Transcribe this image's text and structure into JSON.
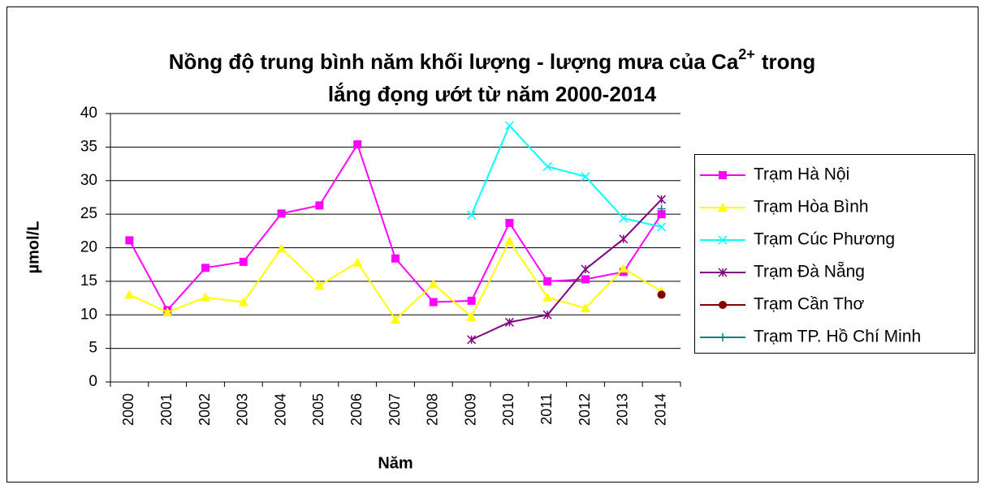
{
  "chart_data": {
    "type": "line",
    "title": {
      "line1": "Nồng độ trung bình năm khối lượng - lượng mưa của Ca",
      "superscript": "2+",
      "line1_end": "trong",
      "line2": "lắng đọng ướt  từ năm 2000-2014"
    },
    "x_label": "Năm",
    "y_label": "µmol/L",
    "categories": [
      "2000",
      "2001",
      "2002",
      "2003",
      "2004",
      "2005",
      "2006",
      "2007",
      "2008",
      "2009",
      "2010",
      "2011",
      "2012",
      "2013",
      "2014"
    ],
    "ylim": [
      0,
      40
    ],
    "yticks": [
      0,
      5,
      10,
      15,
      20,
      25,
      30,
      35,
      40
    ],
    "grid": true,
    "legend": "right",
    "series": [
      {
        "name": "Trạm Hà Nội",
        "color": "#ff00ff",
        "marker": "square",
        "values": [
          21.1,
          10.7,
          17.0,
          17.9,
          25.1,
          26.3,
          35.4,
          18.4,
          11.9,
          12.1,
          23.7,
          15.0,
          15.3,
          16.4,
          25.0
        ]
      },
      {
        "name": "Trạm Hòa Bình",
        "color": "#ffff00",
        "marker": "triangle",
        "values": [
          13.0,
          10.4,
          12.6,
          11.9,
          19.9,
          14.4,
          17.8,
          9.3,
          14.6,
          9.7,
          21.0,
          12.6,
          11.0,
          16.9,
          13.5
        ]
      },
      {
        "name": "Trạm Cúc Phương",
        "color": "#00ffff",
        "marker": "x",
        "values": [
          null,
          null,
          null,
          null,
          null,
          null,
          null,
          null,
          null,
          24.9,
          38.2,
          32.1,
          30.6,
          24.4,
          23.1
        ]
      },
      {
        "name": "Trạm Đà Nẵng",
        "color": "#800080",
        "marker": "star",
        "values": [
          null,
          null,
          null,
          null,
          null,
          null,
          null,
          null,
          null,
          6.3,
          8.9,
          10.0,
          16.8,
          21.3,
          27.2
        ]
      },
      {
        "name": "Trạm Cần Thơ",
        "color": "#800000",
        "marker": "circle",
        "values": [
          null,
          null,
          null,
          null,
          null,
          null,
          null,
          null,
          null,
          null,
          null,
          null,
          null,
          null,
          13.0
        ]
      },
      {
        "name": "Trạm TP. Hồ Chí Minh",
        "color": "#008080",
        "marker": "plus",
        "values": [
          null,
          null,
          null,
          null,
          null,
          null,
          null,
          null,
          null,
          null,
          null,
          null,
          null,
          null,
          25.8
        ]
      }
    ]
  }
}
